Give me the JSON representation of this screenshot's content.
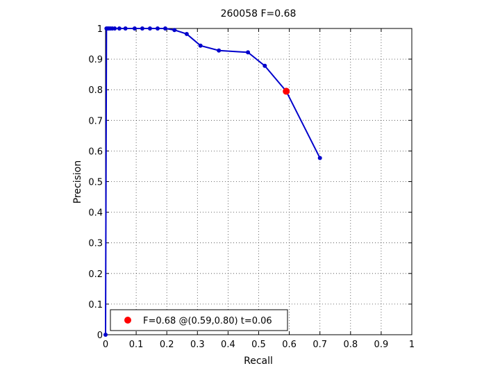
{
  "chart_data": {
    "type": "line",
    "title": "260058 F=0.68",
    "xlabel": "Recall",
    "ylabel": "Precision",
    "xlim": [
      0,
      1
    ],
    "ylim": [
      0,
      1
    ],
    "x_ticks": [
      "0",
      "0.1",
      "0.2",
      "0.3",
      "0.4",
      "0.5",
      "0.6",
      "0.7",
      "0.8",
      "0.9",
      "1"
    ],
    "y_ticks": [
      "0",
      "0.1",
      "0.2",
      "0.3",
      "0.4",
      "0.5",
      "0.6",
      "0.7",
      "0.8",
      "0.9",
      "1"
    ],
    "grid": true,
    "legend_position": "bottom-left",
    "series": [
      {
        "color": "#0000cc",
        "x": [
          0,
          0.003,
          0.007,
          0.011,
          0.016,
          0.022,
          0.03,
          0.045,
          0.065,
          0.095,
          0.12,
          0.145,
          0.17,
          0.195,
          0.225,
          0.265,
          0.31,
          0.37,
          0.465,
          0.52,
          0.59,
          0.7
        ],
        "y": [
          0,
          1.0,
          1.0,
          1.0,
          1.0,
          1.0,
          1.0,
          1.0,
          1.0,
          1.0,
          1.0,
          1.0,
          1.0,
          1.0,
          0.995,
          0.982,
          0.944,
          0.928,
          0.922,
          0.878,
          0.795,
          0.577
        ]
      }
    ],
    "highlight_point": {
      "x": 0.59,
      "y": 0.795,
      "color": "#ff0000"
    },
    "legend": [
      {
        "label": "F=0.68 @(0.59,0.80) t=0.06",
        "color": "#ff0000"
      }
    ]
  }
}
